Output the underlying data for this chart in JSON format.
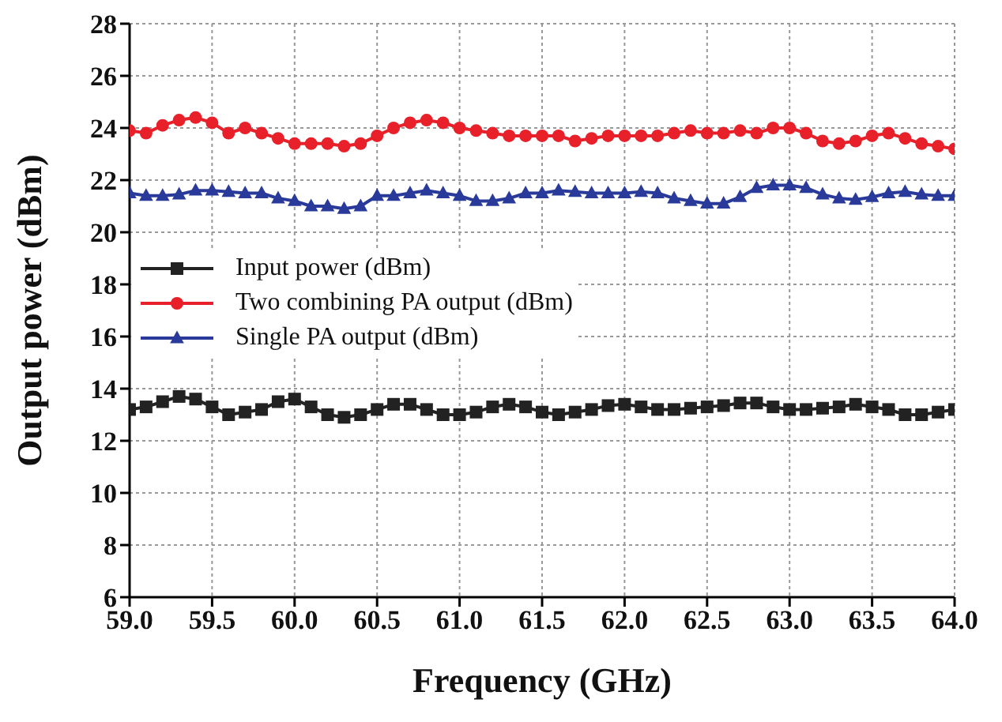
{
  "chart_data": {
    "type": "line",
    "xlabel": "Frequency (GHz)",
    "ylabel": "Output power (dBm)",
    "x": [
      59.0,
      59.1,
      59.2,
      59.3,
      59.4,
      59.5,
      59.6,
      59.7,
      59.8,
      59.9,
      60.0,
      60.1,
      60.2,
      60.3,
      60.4,
      60.5,
      60.6,
      60.7,
      60.8,
      60.9,
      61.0,
      61.1,
      61.2,
      61.3,
      61.4,
      61.5,
      61.6,
      61.7,
      61.8,
      61.9,
      62.0,
      62.1,
      62.2,
      62.3,
      62.4,
      62.5,
      62.6,
      62.7,
      62.8,
      62.9,
      63.0,
      63.1,
      63.2,
      63.3,
      63.4,
      63.5,
      63.6,
      63.7,
      63.8,
      63.9,
      64.0
    ],
    "series": [
      {
        "name": "Input power (dBm)",
        "color": "#222222",
        "marker": "square",
        "values": [
          13.2,
          13.3,
          13.5,
          13.7,
          13.6,
          13.3,
          13.0,
          13.1,
          13.2,
          13.5,
          13.6,
          13.3,
          13.0,
          12.9,
          13.0,
          13.2,
          13.4,
          13.4,
          13.2,
          13.0,
          13.0,
          13.1,
          13.3,
          13.4,
          13.3,
          13.1,
          13.0,
          13.1,
          13.2,
          13.35,
          13.4,
          13.3,
          13.2,
          13.2,
          13.25,
          13.3,
          13.35,
          13.45,
          13.45,
          13.3,
          13.2,
          13.2,
          13.25,
          13.3,
          13.4,
          13.3,
          13.2,
          13.0,
          13.0,
          13.1,
          13.2
        ]
      },
      {
        "name": "Two combining PA output (dBm)",
        "color": "#e8202a",
        "marker": "circle",
        "values": [
          23.9,
          23.8,
          24.1,
          24.3,
          24.4,
          24.2,
          23.8,
          24.0,
          23.8,
          23.6,
          23.4,
          23.4,
          23.4,
          23.3,
          23.4,
          23.7,
          24.0,
          24.2,
          24.3,
          24.2,
          24.0,
          23.9,
          23.8,
          23.7,
          23.7,
          23.7,
          23.7,
          23.5,
          23.6,
          23.7,
          23.7,
          23.7,
          23.7,
          23.8,
          23.9,
          23.8,
          23.8,
          23.9,
          23.8,
          24.0,
          24.0,
          23.8,
          23.5,
          23.4,
          23.5,
          23.7,
          23.8,
          23.6,
          23.4,
          23.3,
          23.2
        ]
      },
      {
        "name": "Single PA output (dBm)",
        "color": "#2a3a9a",
        "marker": "triangle",
        "values": [
          21.5,
          21.4,
          21.4,
          21.45,
          21.6,
          21.6,
          21.55,
          21.5,
          21.5,
          21.3,
          21.2,
          21.0,
          21.0,
          20.9,
          21.0,
          21.4,
          21.4,
          21.5,
          21.6,
          21.5,
          21.4,
          21.2,
          21.2,
          21.3,
          21.5,
          21.5,
          21.6,
          21.55,
          21.5,
          21.5,
          21.5,
          21.55,
          21.5,
          21.3,
          21.2,
          21.1,
          21.1,
          21.35,
          21.7,
          21.8,
          21.8,
          21.7,
          21.45,
          21.3,
          21.25,
          21.35,
          21.5,
          21.55,
          21.45,
          21.4,
          21.4
        ]
      }
    ],
    "xlim": [
      59,
      64
    ],
    "xticks": [
      {
        "value": 59,
        "label": "59.0"
      },
      59.5,
      {
        "value": 60,
        "label": "60.0"
      },
      60.5,
      {
        "value": 61,
        "label": "61.0"
      },
      61.5,
      {
        "value": 62,
        "label": "62.0"
      },
      62.5,
      {
        "value": 63,
        "label": "63.0"
      },
      63.5,
      {
        "value": 64,
        "label": "64.0"
      }
    ],
    "ylim": [
      6,
      28
    ],
    "yticks": [
      6,
      8,
      10,
      12,
      14,
      16,
      18,
      20,
      22,
      24,
      26,
      28
    ],
    "grid": true,
    "legend": "left",
    "line_style": "solid"
  }
}
